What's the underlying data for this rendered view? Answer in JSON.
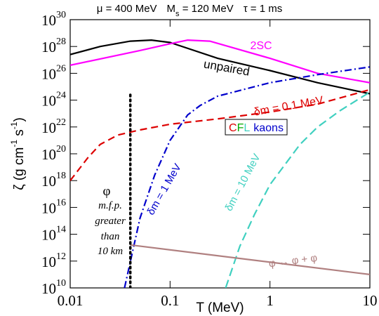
{
  "chart_data": {
    "type": "line",
    "title_parts": [
      "μ = 400 MeV",
      "M",
      "s",
      " = 120 MeV",
      "τ = 1 ms"
    ],
    "x_label": "T (MeV)",
    "y_label_parts": [
      "ζ  (g cm",
      "-1",
      " s",
      "-1",
      ")"
    ],
    "log_x": true,
    "log_y": true,
    "xlim": [
      0.01,
      10
    ],
    "ylim": [
      10000000000.0,
      1e+30
    ],
    "xticks": [
      0.01,
      0.1,
      1,
      10
    ],
    "yticks": [
      {
        "value": 10000000000.0,
        "label": "10",
        "exponent": "10"
      },
      {
        "value": 1000000000000.0,
        "label": "10",
        "exponent": "12"
      },
      {
        "value": 100000000000000.0,
        "label": "10",
        "exponent": "14"
      },
      {
        "value": 1e+16,
        "label": "10",
        "exponent": "16"
      },
      {
        "value": 1e+18,
        "label": "10",
        "exponent": "18"
      },
      {
        "value": 1e+20,
        "label": "10",
        "exponent": "20"
      },
      {
        "value": 1e+22,
        "label": "10",
        "exponent": "22"
      },
      {
        "value": 1e+24,
        "label": "10",
        "exponent": "24"
      },
      {
        "value": 1e+26,
        "label": "10",
        "exponent": "26"
      },
      {
        "value": 1e+28,
        "label": "10",
        "exponent": "28"
      },
      {
        "value": 1e+30,
        "label": "10",
        "exponent": "30"
      }
    ],
    "series": [
      {
        "color": "#000000",
        "dash": "",
        "x": [
          0.01,
          0.02,
          0.04,
          0.065,
          0.1,
          0.3,
          1,
          3,
          10
        ],
        "values": [
          2.5e+27,
          1e+28,
          2.5e+28,
          3e+28,
          2e+28,
          1.3e+27,
          1.6e+26,
          2e+25,
          3e+24
        ]
      },
      {
        "color": "#ff00ff",
        "dash": "",
        "x": [
          0.01,
          0.05,
          0.1,
          0.15,
          0.25,
          1,
          3,
          10
        ],
        "values": [
          4e+26,
          5e+27,
          1.6e+28,
          3e+28,
          2.5e+28,
          1.3e+27,
          1e+26,
          2e+25
        ]
      },
      {
        "color": "#0000cc",
        "dash": "10 4 2 4",
        "x": [
          0.035,
          0.05,
          0.07,
          0.1,
          0.15,
          0.2,
          0.3,
          1,
          3,
          10
        ],
        "values": [
          10000000000.0,
          1600000000000000.0,
          2.5e+18,
          1e+21,
          8e+22,
          4e+23,
          2e+24,
          2e+25,
          8e+25,
          3e+26
        ]
      },
      {
        "color": "#dd0000",
        "dash": "10 6",
        "x": [
          0.01,
          0.015,
          0.02,
          0.03,
          0.05,
          0.1,
          0.3,
          1,
          3,
          10
        ],
        "values": [
          1e+18,
          5e+19,
          5e+20,
          2.5e+21,
          6e+21,
          1.6e+22,
          4e+22,
          1.3e+23,
          5e+23,
          6e+24
        ]
      },
      {
        "color": "#40d0c0",
        "dash": "12 6",
        "x": [
          0.36,
          0.5,
          0.7,
          1,
          2,
          3,
          5,
          10
        ],
        "values": [
          10000000000.0,
          13000000000000.0,
          3000000000000000.0,
          5e+17,
          5e+20,
          1e+22,
          1.6e+23,
          4e+24
        ]
      },
      {
        "color": "#b08080",
        "dash": "",
        "x": [
          0.04,
          10
        ],
        "values": [
          16000000000000.0,
          100000000000.0
        ]
      },
      {
        "color": "#000000",
        "dash": "2 5",
        "x": [
          0.04,
          0.04
        ],
        "values": [
          10000000000.0,
          3e+24
        ]
      }
    ],
    "annotations": [
      {
        "text": "2SC",
        "color": "#ff00ff"
      },
      {
        "text": "unpaired",
        "color": "#000000"
      },
      {
        "text": "δm = 0.1 MeV",
        "color": "#dd0000"
      },
      {
        "text": "δm = 1 MeV",
        "color": "#0000cc"
      },
      {
        "text": "δm = 10 MeV",
        "color": "#40d0c0"
      },
      {
        "text": "φ ↔ φ + φ",
        "color": "#b08080"
      },
      {
        "text": "φ",
        "color": "#000000"
      },
      {
        "text": "m.f.p.",
        "color": "#000000"
      },
      {
        "text": "greater",
        "color": "#000000"
      },
      {
        "text": "than",
        "color": "#000000"
      },
      {
        "text": "10 km",
        "color": "#000000"
      }
    ],
    "cfl_label": [
      {
        "text": "C",
        "color": "#dd0000"
      },
      {
        "text": "F",
        "color": "#00aa00"
      },
      {
        "text": "L",
        "color": "#40d0c0"
      },
      {
        "text": "kaons",
        "color": "#0000cc"
      }
    ]
  }
}
